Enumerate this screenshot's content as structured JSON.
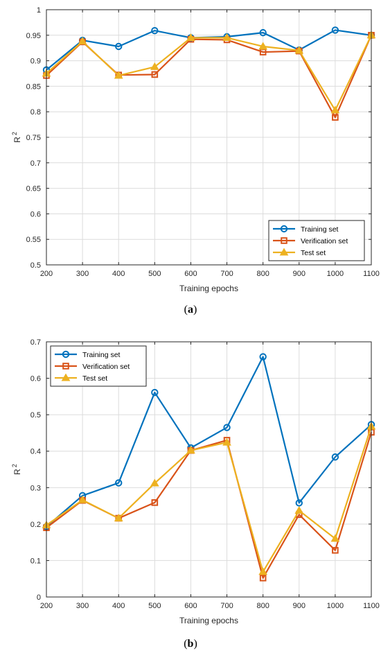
{
  "chart_data": [
    {
      "type": "line",
      "xlabel": "Training epochs",
      "ylabel": "R",
      "ylabel_sup": "2",
      "x": [
        200,
        300,
        400,
        500,
        600,
        700,
        800,
        900,
        1000,
        1100
      ],
      "xlim": [
        200,
        1100
      ],
      "ylim": [
        0.5,
        1
      ],
      "yticks": [
        "0.5",
        "0.55",
        "0.6",
        "0.65",
        "0.7",
        "0.75",
        "0.8",
        "0.85",
        "0.9",
        "0.95",
        "1"
      ],
      "xticks": [
        "200",
        "300",
        "400",
        "500",
        "600",
        "700",
        "800",
        "900",
        "1000",
        "1100"
      ],
      "grid": true,
      "legend_position": "bottom-right",
      "series": [
        {
          "name": "Training set",
          "color": "#0072BD",
          "marker": "circle",
          "values": [
            0.882,
            0.94,
            0.928,
            0.959,
            0.945,
            0.947,
            0.955,
            0.921,
            0.96,
            0.95
          ]
        },
        {
          "name": "Verification set",
          "color": "#D95319",
          "marker": "square",
          "values": [
            0.871,
            0.937,
            0.872,
            0.873,
            0.942,
            0.941,
            0.917,
            0.919,
            0.789,
            0.95
          ]
        },
        {
          "name": "Test set",
          "color": "#EDB120",
          "marker": "triangle",
          "values": [
            0.875,
            0.938,
            0.871,
            0.888,
            0.945,
            0.945,
            0.928,
            0.92,
            0.803,
            0.95
          ]
        }
      ],
      "caption": "a"
    },
    {
      "type": "line",
      "xlabel": "Training epochs",
      "ylabel": "R",
      "ylabel_sup": "2",
      "x": [
        200,
        300,
        400,
        500,
        600,
        700,
        800,
        900,
        1000,
        1100
      ],
      "xlim": [
        200,
        1100
      ],
      "ylim": [
        0,
        0.7
      ],
      "yticks": [
        "0",
        "0.1",
        "0.2",
        "0.3",
        "0.4",
        "0.5",
        "0.6",
        "0.7"
      ],
      "xticks": [
        "200",
        "300",
        "400",
        "500",
        "600",
        "700",
        "800",
        "900",
        "1000",
        "1100"
      ],
      "grid": true,
      "legend_position": "top-left",
      "series": [
        {
          "name": "Training set",
          "color": "#0072BD",
          "marker": "circle",
          "values": [
            0.193,
            0.278,
            0.313,
            0.561,
            0.409,
            0.465,
            0.659,
            0.258,
            0.384,
            0.473
          ]
        },
        {
          "name": "Verification set",
          "color": "#D95319",
          "marker": "square",
          "values": [
            0.19,
            0.265,
            0.216,
            0.259,
            0.402,
            0.43,
            0.052,
            0.226,
            0.128,
            0.452
          ]
        },
        {
          "name": "Test set",
          "color": "#EDB120",
          "marker": "triangle",
          "values": [
            0.197,
            0.266,
            0.216,
            0.312,
            0.402,
            0.424,
            0.069,
            0.237,
            0.16,
            0.468
          ]
        }
      ],
      "caption": "b"
    }
  ]
}
